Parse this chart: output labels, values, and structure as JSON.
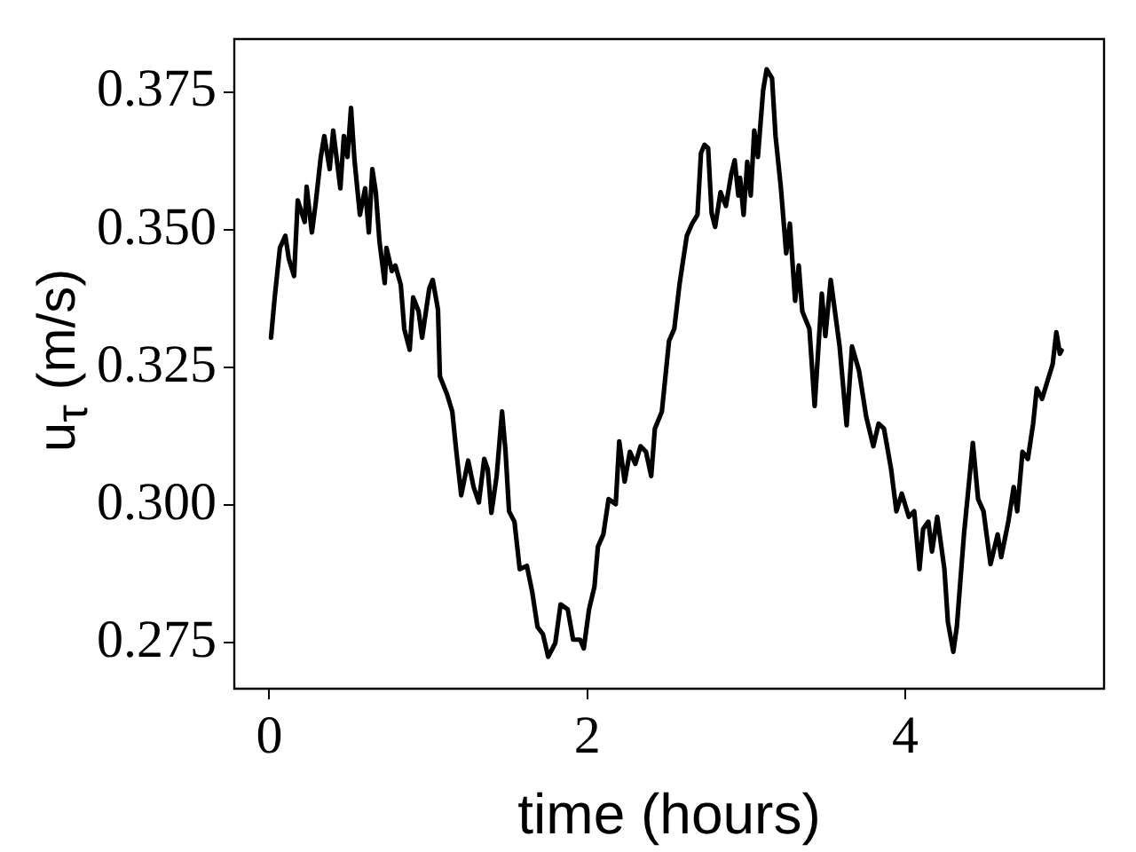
{
  "chart_data": {
    "type": "line",
    "xlabel": "time (hours)",
    "ylabel": "u$_{τ}$ (m/s)",
    "xlim": [
      -0.22,
      5.25
    ],
    "ylim": [
      0.2667,
      0.3846
    ],
    "xticks": [
      0,
      2,
      4
    ],
    "yticks": [
      0.275,
      {
        "value": 0.3,
        "label": "0.300"
      },
      0.325,
      {
        "value": 0.35,
        "label": "0.350"
      },
      0.375
    ],
    "grid": false,
    "legend": false,
    "marker": "none",
    "line_style": "solid",
    "series": [
      {
        "color": "#000000",
        "x": [
          0.011,
          0.034,
          0.067,
          0.101,
          0.123,
          0.156,
          0.179,
          0.223,
          0.235,
          0.268,
          0.291,
          0.324,
          0.346,
          0.38,
          0.402,
          0.447,
          0.469,
          0.492,
          0.514,
          0.536,
          0.57,
          0.603,
          0.626,
          0.648,
          0.67,
          0.693,
          0.726,
          0.737,
          0.771,
          0.793,
          0.827,
          0.849,
          0.883,
          0.905,
          0.939,
          0.961,
          1.006,
          1.028,
          1.061,
          1.073,
          1.117,
          1.151,
          1.173,
          1.207,
          1.251,
          1.285,
          1.318,
          1.352,
          1.374,
          1.397,
          1.43,
          1.464,
          1.486,
          1.508,
          1.542,
          1.575,
          1.62,
          1.654,
          1.687,
          1.721,
          1.754,
          1.799,
          1.832,
          1.877,
          1.911,
          1.955,
          1.978,
          2.011,
          2.045,
          2.067,
          2.101,
          2.134,
          2.179,
          2.201,
          2.235,
          2.268,
          2.302,
          2.335,
          2.369,
          2.402,
          2.425,
          2.469,
          2.514,
          2.547,
          2.581,
          2.626,
          2.659,
          2.693,
          2.715,
          2.737,
          2.76,
          2.782,
          2.804,
          2.838,
          2.872,
          2.905,
          2.927,
          2.95,
          2.961,
          2.983,
          3.006,
          3.028,
          3.05,
          3.073,
          3.106,
          3.128,
          3.162,
          3.184,
          3.218,
          3.251,
          3.274,
          3.307,
          3.33,
          3.352,
          3.397,
          3.43,
          3.475,
          3.497,
          3.531,
          3.587,
          3.631,
          3.665,
          3.709,
          3.754,
          3.799,
          3.832,
          3.866,
          3.911,
          3.944,
          3.978,
          4.022,
          4.056,
          4.089,
          4.112,
          4.145,
          4.168,
          4.201,
          4.246,
          4.268,
          4.302,
          4.324,
          4.369,
          4.425,
          4.458,
          4.492,
          4.536,
          4.581,
          4.603,
          4.648,
          4.682,
          4.704,
          4.737,
          4.771,
          4.804,
          4.827,
          4.86,
          4.894,
          4.927,
          4.95,
          4.972,
          4.983
        ],
        "values": [
          0.3304,
          0.3377,
          0.3467,
          0.3489,
          0.3447,
          0.3416,
          0.3553,
          0.3514,
          0.3578,
          0.3495,
          0.3546,
          0.3632,
          0.367,
          0.361,
          0.368,
          0.3575,
          0.367,
          0.3632,
          0.3721,
          0.3626,
          0.3527,
          0.3575,
          0.3495,
          0.361,
          0.3568,
          0.3479,
          0.3403,
          0.3467,
          0.3425,
          0.3435,
          0.34,
          0.332,
          0.3282,
          0.3377,
          0.3352,
          0.3304,
          0.3393,
          0.3409,
          0.3355,
          0.3234,
          0.3202,
          0.317,
          0.3107,
          0.3018,
          0.3081,
          0.3033,
          0.3005,
          0.3084,
          0.3065,
          0.2986,
          0.3053,
          0.317,
          0.3097,
          0.2989,
          0.297,
          0.2884,
          0.289,
          0.2842,
          0.2779,
          0.2766,
          0.2725,
          0.275,
          0.282,
          0.2811,
          0.2756,
          0.2756,
          0.274,
          0.2811,
          0.2852,
          0.2925,
          0.2947,
          0.3011,
          0.3002,
          0.3116,
          0.3043,
          0.3097,
          0.3075,
          0.3107,
          0.3097,
          0.3053,
          0.3139,
          0.317,
          0.3298,
          0.332,
          0.3403,
          0.3489,
          0.3511,
          0.3527,
          0.3639,
          0.3654,
          0.3648,
          0.353,
          0.3505,
          0.3568,
          0.3543,
          0.36,
          0.3626,
          0.3562,
          0.3594,
          0.3527,
          0.3623,
          0.3562,
          0.368,
          0.3632,
          0.3753,
          0.3791,
          0.3775,
          0.367,
          0.3575,
          0.3457,
          0.3511,
          0.3371,
          0.3435,
          0.3352,
          0.332,
          0.318,
          0.3384,
          0.3307,
          0.3409,
          0.3288,
          0.3145,
          0.3288,
          0.3244,
          0.3161,
          0.3107,
          0.3148,
          0.3139,
          0.3065,
          0.2989,
          0.3021,
          0.2979,
          0.2989,
          0.2884,
          0.2957,
          0.297,
          0.2916,
          0.2979,
          0.2884,
          0.2788,
          0.2734,
          0.2779,
          0.2947,
          0.3113,
          0.3011,
          0.2989,
          0.2893,
          0.2947,
          0.2906,
          0.297,
          0.3033,
          0.2989,
          0.3097,
          0.3084,
          0.3148,
          0.3212,
          0.3193,
          0.3225,
          0.3256,
          0.3314,
          0.3275,
          0.3281
        ]
      }
    ]
  }
}
